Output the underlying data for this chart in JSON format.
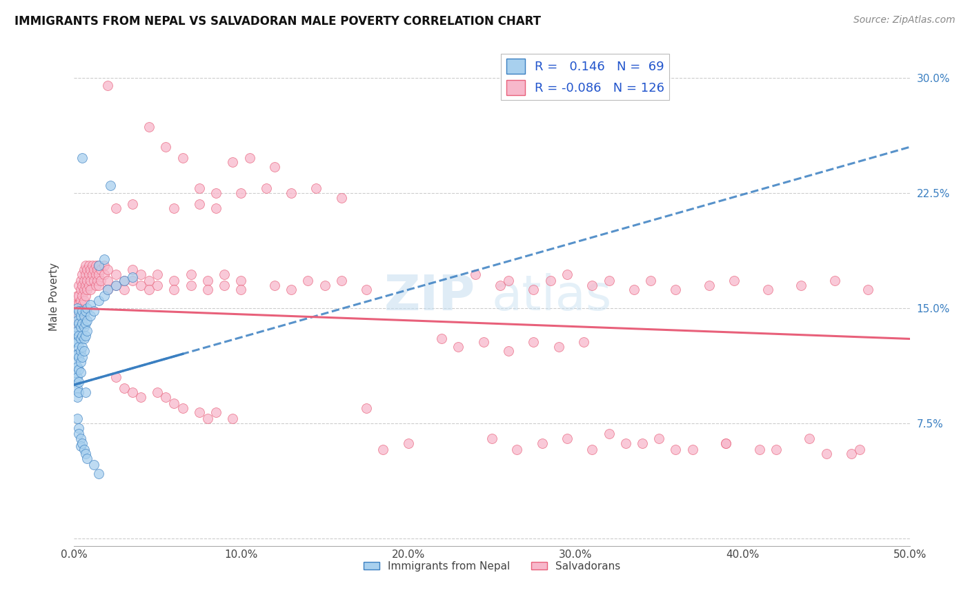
{
  "title": "IMMIGRANTS FROM NEPAL VS SALVADORAN MALE POVERTY CORRELATION CHART",
  "source": "Source: ZipAtlas.com",
  "ylabel": "Male Poverty",
  "yticks": [
    0.0,
    0.075,
    0.15,
    0.225,
    0.3
  ],
  "ytick_labels": [
    "",
    "7.5%",
    "15.0%",
    "22.5%",
    "30.0%"
  ],
  "xlim": [
    0.0,
    0.5
  ],
  "ylim": [
    -0.005,
    0.32
  ],
  "color_nepal": "#A8D0EE",
  "color_salvador": "#F7B8CB",
  "line_color_nepal": "#3A7FC1",
  "line_color_salvador": "#E8607A",
  "watermark": "ZIPatlas",
  "nepal_points": [
    [
      0.001,
      0.145
    ],
    [
      0.001,
      0.138
    ],
    [
      0.001,
      0.132
    ],
    [
      0.001,
      0.128
    ],
    [
      0.001,
      0.12
    ],
    [
      0.001,
      0.115
    ],
    [
      0.001,
      0.108
    ],
    [
      0.001,
      0.102
    ],
    [
      0.002,
      0.15
    ],
    [
      0.002,
      0.142
    ],
    [
      0.002,
      0.135
    ],
    [
      0.002,
      0.128
    ],
    [
      0.002,
      0.12
    ],
    [
      0.002,
      0.112
    ],
    [
      0.002,
      0.105
    ],
    [
      0.002,
      0.098
    ],
    [
      0.002,
      0.092
    ],
    [
      0.003,
      0.148
    ],
    [
      0.003,
      0.14
    ],
    [
      0.003,
      0.132
    ],
    [
      0.003,
      0.125
    ],
    [
      0.003,
      0.118
    ],
    [
      0.003,
      0.11
    ],
    [
      0.003,
      0.102
    ],
    [
      0.003,
      0.095
    ],
    [
      0.004,
      0.145
    ],
    [
      0.004,
      0.138
    ],
    [
      0.004,
      0.13
    ],
    [
      0.004,
      0.122
    ],
    [
      0.004,
      0.115
    ],
    [
      0.004,
      0.108
    ],
    [
      0.005,
      0.148
    ],
    [
      0.005,
      0.14
    ],
    [
      0.005,
      0.132
    ],
    [
      0.005,
      0.125
    ],
    [
      0.005,
      0.118
    ],
    [
      0.006,
      0.145
    ],
    [
      0.006,
      0.138
    ],
    [
      0.006,
      0.13
    ],
    [
      0.006,
      0.122
    ],
    [
      0.007,
      0.148
    ],
    [
      0.007,
      0.14
    ],
    [
      0.007,
      0.132
    ],
    [
      0.007,
      0.095
    ],
    [
      0.008,
      0.15
    ],
    [
      0.008,
      0.142
    ],
    [
      0.008,
      0.135
    ],
    [
      0.01,
      0.152
    ],
    [
      0.01,
      0.145
    ],
    [
      0.012,
      0.148
    ],
    [
      0.015,
      0.155
    ],
    [
      0.018,
      0.158
    ],
    [
      0.02,
      0.162
    ],
    [
      0.025,
      0.165
    ],
    [
      0.03,
      0.168
    ],
    [
      0.035,
      0.17
    ],
    [
      0.002,
      0.078
    ],
    [
      0.003,
      0.072
    ],
    [
      0.003,
      0.068
    ],
    [
      0.004,
      0.065
    ],
    [
      0.004,
      0.06
    ],
    [
      0.005,
      0.062
    ],
    [
      0.006,
      0.058
    ],
    [
      0.007,
      0.055
    ],
    [
      0.008,
      0.052
    ],
    [
      0.012,
      0.048
    ],
    [
      0.015,
      0.042
    ],
    [
      0.022,
      0.23
    ],
    [
      0.005,
      0.248
    ],
    [
      0.015,
      0.178
    ],
    [
      0.018,
      0.182
    ]
  ],
  "salvador_points": [
    [
      0.001,
      0.152
    ],
    [
      0.001,
      0.148
    ],
    [
      0.001,
      0.142
    ],
    [
      0.002,
      0.158
    ],
    [
      0.002,
      0.152
    ],
    [
      0.002,
      0.145
    ],
    [
      0.002,
      0.14
    ],
    [
      0.003,
      0.165
    ],
    [
      0.003,
      0.158
    ],
    [
      0.003,
      0.152
    ],
    [
      0.003,
      0.145
    ],
    [
      0.003,
      0.14
    ],
    [
      0.004,
      0.168
    ],
    [
      0.004,
      0.162
    ],
    [
      0.004,
      0.155
    ],
    [
      0.004,
      0.148
    ],
    [
      0.005,
      0.172
    ],
    [
      0.005,
      0.165
    ],
    [
      0.005,
      0.158
    ],
    [
      0.005,
      0.152
    ],
    [
      0.005,
      0.145
    ],
    [
      0.006,
      0.175
    ],
    [
      0.006,
      0.168
    ],
    [
      0.006,
      0.162
    ],
    [
      0.006,
      0.155
    ],
    [
      0.006,
      0.148
    ],
    [
      0.007,
      0.178
    ],
    [
      0.007,
      0.172
    ],
    [
      0.007,
      0.165
    ],
    [
      0.007,
      0.158
    ],
    [
      0.008,
      0.175
    ],
    [
      0.008,
      0.168
    ],
    [
      0.008,
      0.162
    ],
    [
      0.009,
      0.178
    ],
    [
      0.009,
      0.172
    ],
    [
      0.009,
      0.165
    ],
    [
      0.01,
      0.175
    ],
    [
      0.01,
      0.168
    ],
    [
      0.01,
      0.162
    ],
    [
      0.011,
      0.178
    ],
    [
      0.011,
      0.172
    ],
    [
      0.012,
      0.175
    ],
    [
      0.012,
      0.168
    ],
    [
      0.013,
      0.178
    ],
    [
      0.013,
      0.172
    ],
    [
      0.013,
      0.165
    ],
    [
      0.014,
      0.175
    ],
    [
      0.014,
      0.168
    ],
    [
      0.015,
      0.178
    ],
    [
      0.015,
      0.172
    ],
    [
      0.015,
      0.165
    ],
    [
      0.016,
      0.175
    ],
    [
      0.016,
      0.168
    ],
    [
      0.018,
      0.178
    ],
    [
      0.018,
      0.172
    ],
    [
      0.02,
      0.175
    ],
    [
      0.02,
      0.168
    ],
    [
      0.02,
      0.162
    ],
    [
      0.025,
      0.172
    ],
    [
      0.025,
      0.165
    ],
    [
      0.03,
      0.168
    ],
    [
      0.03,
      0.162
    ],
    [
      0.035,
      0.175
    ],
    [
      0.035,
      0.168
    ],
    [
      0.04,
      0.172
    ],
    [
      0.04,
      0.165
    ],
    [
      0.045,
      0.168
    ],
    [
      0.045,
      0.162
    ],
    [
      0.05,
      0.172
    ],
    [
      0.05,
      0.165
    ],
    [
      0.06,
      0.168
    ],
    [
      0.06,
      0.162
    ],
    [
      0.07,
      0.172
    ],
    [
      0.07,
      0.165
    ],
    [
      0.08,
      0.168
    ],
    [
      0.08,
      0.162
    ],
    [
      0.09,
      0.172
    ],
    [
      0.09,
      0.165
    ],
    [
      0.1,
      0.168
    ],
    [
      0.1,
      0.162
    ],
    [
      0.12,
      0.165
    ],
    [
      0.13,
      0.162
    ],
    [
      0.14,
      0.168
    ],
    [
      0.15,
      0.165
    ],
    [
      0.16,
      0.168
    ],
    [
      0.175,
      0.162
    ],
    [
      0.02,
      0.295
    ],
    [
      0.045,
      0.268
    ],
    [
      0.055,
      0.255
    ],
    [
      0.065,
      0.248
    ],
    [
      0.095,
      0.245
    ],
    [
      0.105,
      0.248
    ],
    [
      0.12,
      0.242
    ],
    [
      0.075,
      0.228
    ],
    [
      0.085,
      0.225
    ],
    [
      0.1,
      0.225
    ],
    [
      0.115,
      0.228
    ],
    [
      0.13,
      0.225
    ],
    [
      0.145,
      0.228
    ],
    [
      0.16,
      0.222
    ],
    [
      0.025,
      0.215
    ],
    [
      0.035,
      0.218
    ],
    [
      0.06,
      0.215
    ],
    [
      0.075,
      0.218
    ],
    [
      0.085,
      0.215
    ],
    [
      0.025,
      0.105
    ],
    [
      0.03,
      0.098
    ],
    [
      0.035,
      0.095
    ],
    [
      0.04,
      0.092
    ],
    [
      0.05,
      0.095
    ],
    [
      0.055,
      0.092
    ],
    [
      0.06,
      0.088
    ],
    [
      0.065,
      0.085
    ],
    [
      0.075,
      0.082
    ],
    [
      0.08,
      0.078
    ],
    [
      0.085,
      0.082
    ],
    [
      0.095,
      0.078
    ],
    [
      0.175,
      0.085
    ],
    [
      0.185,
      0.058
    ],
    [
      0.2,
      0.062
    ],
    [
      0.24,
      0.172
    ],
    [
      0.255,
      0.165
    ],
    [
      0.26,
      0.168
    ],
    [
      0.275,
      0.162
    ],
    [
      0.285,
      0.168
    ],
    [
      0.295,
      0.172
    ],
    [
      0.31,
      0.165
    ],
    [
      0.32,
      0.168
    ],
    [
      0.335,
      0.162
    ],
    [
      0.345,
      0.168
    ],
    [
      0.36,
      0.162
    ],
    [
      0.38,
      0.165
    ],
    [
      0.395,
      0.168
    ],
    [
      0.415,
      0.162
    ],
    [
      0.435,
      0.165
    ],
    [
      0.455,
      0.168
    ],
    [
      0.475,
      0.162
    ],
    [
      0.25,
      0.065
    ],
    [
      0.265,
      0.058
    ],
    [
      0.28,
      0.062
    ],
    [
      0.295,
      0.065
    ],
    [
      0.31,
      0.058
    ],
    [
      0.33,
      0.062
    ],
    [
      0.35,
      0.065
    ],
    [
      0.37,
      0.058
    ],
    [
      0.39,
      0.062
    ],
    [
      0.41,
      0.058
    ],
    [
      0.44,
      0.065
    ],
    [
      0.465,
      0.055
    ],
    [
      0.22,
      0.13
    ],
    [
      0.23,
      0.125
    ],
    [
      0.245,
      0.128
    ],
    [
      0.26,
      0.122
    ],
    [
      0.275,
      0.128
    ],
    [
      0.29,
      0.125
    ],
    [
      0.305,
      0.128
    ],
    [
      0.32,
      0.068
    ],
    [
      0.34,
      0.062
    ],
    [
      0.36,
      0.058
    ],
    [
      0.39,
      0.062
    ],
    [
      0.42,
      0.058
    ],
    [
      0.45,
      0.055
    ],
    [
      0.47,
      0.058
    ]
  ]
}
